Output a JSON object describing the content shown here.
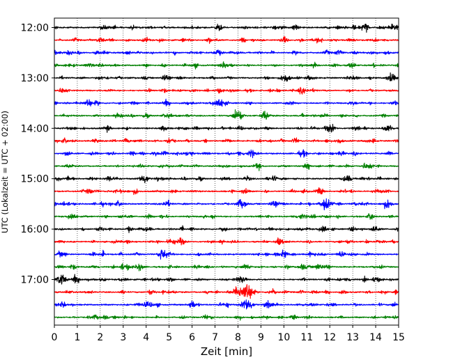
{
  "chart_data": {
    "type": "line",
    "xlabel": "Zeit  [min]",
    "ylabel": "UTC (Lokalzeit = UTC + 02:00)",
    "xlim": [
      0,
      15
    ],
    "x_ticks": [
      0,
      1,
      2,
      3,
      4,
      5,
      6,
      7,
      8,
      9,
      10,
      11,
      12,
      13,
      14,
      15
    ],
    "x_tick_labels": [
      "0",
      "1",
      "2",
      "3",
      "4",
      "5",
      "6",
      "7",
      "8",
      "9",
      "10",
      "11",
      "12",
      "13",
      "14",
      "15"
    ],
    "y_tick_labels": [
      "12:00",
      "13:00",
      "14:00",
      "15:00",
      "16:00",
      "17:00"
    ],
    "row_interval_min": 15,
    "grid": "vertical dotted",
    "series_colors": [
      "#000000",
      "#ff0000",
      "#0000ff",
      "#008000"
    ],
    "traces": [
      {
        "start": "12:00",
        "events": [
          {
            "t": 13.5,
            "a": 1.0
          },
          {
            "t": 2.2,
            "a": 0.7
          },
          {
            "t": 7.2,
            "a": 0.6
          },
          {
            "t": 10.5,
            "a": 0.6
          },
          {
            "t": 14.8,
            "a": 0.6
          }
        ]
      },
      {
        "start": "12:15",
        "events": [
          {
            "t": 2.0,
            "a": 0.6
          },
          {
            "t": 4.0,
            "a": 0.5
          },
          {
            "t": 10.0,
            "a": 0.6
          },
          {
            "t": 11.5,
            "a": 0.5
          }
        ]
      },
      {
        "start": "12:30",
        "events": [
          {
            "t": 7.1,
            "a": 0.6
          },
          {
            "t": 12.4,
            "a": 0.6
          },
          {
            "t": 2.2,
            "a": 0.4
          },
          {
            "t": 3.2,
            "a": 0.4
          }
        ]
      },
      {
        "start": "12:45",
        "events": [
          {
            "t": 7.4,
            "a": 0.8
          },
          {
            "t": 2.0,
            "a": 0.4
          },
          {
            "t": 12.2,
            "a": 0.4
          }
        ]
      },
      {
        "start": "13:00",
        "events": [
          {
            "t": 10.1,
            "a": 0.9
          },
          {
            "t": 4.9,
            "a": 0.6
          },
          {
            "t": 2.0,
            "a": 0.4
          },
          {
            "t": 13.0,
            "a": 0.4
          }
        ]
      },
      {
        "start": "13:15",
        "events": [
          {
            "t": 7.2,
            "a": 0.5
          },
          {
            "t": 10.8,
            "a": 0.5
          },
          {
            "t": 6.0,
            "a": 0.4
          }
        ]
      },
      {
        "start": "13:30",
        "events": [
          {
            "t": 7.2,
            "a": 1.3
          },
          {
            "t": 1.5,
            "a": 0.6
          },
          {
            "t": 4.9,
            "a": 0.5
          },
          {
            "t": 13.0,
            "a": 0.4
          }
        ]
      },
      {
        "start": "13:45",
        "events": [
          {
            "t": 8.0,
            "a": 1.4
          },
          {
            "t": 9.2,
            "a": 0.8
          },
          {
            "t": 4.0,
            "a": 0.4
          }
        ]
      },
      {
        "start": "14:00",
        "events": [
          {
            "t": 14.6,
            "a": 0.7
          },
          {
            "t": 12.0,
            "a": 0.7
          },
          {
            "t": 0.8,
            "a": 0.4
          },
          {
            "t": 2.3,
            "a": 0.4
          },
          {
            "t": 4.8,
            "a": 0.4
          }
        ]
      },
      {
        "start": "14:15",
        "events": [
          {
            "t": 10.5,
            "a": 0.6
          },
          {
            "t": 1.8,
            "a": 0.4
          },
          {
            "t": 5.0,
            "a": 0.4
          },
          {
            "t": 7.5,
            "a": 0.4
          }
        ]
      },
      {
        "start": "14:30",
        "events": [
          {
            "t": 8.6,
            "a": 0.8
          },
          {
            "t": 0.6,
            "a": 0.6
          },
          {
            "t": 5.9,
            "a": 0.6
          },
          {
            "t": 10.8,
            "a": 0.5
          },
          {
            "t": 12.5,
            "a": 0.5
          },
          {
            "t": 14.6,
            "a": 0.5
          }
        ]
      },
      {
        "start": "14:45",
        "events": [
          {
            "t": 4.7,
            "a": 0.4
          },
          {
            "t": 7.5,
            "a": 0.4
          },
          {
            "t": 13.8,
            "a": 0.4
          }
        ]
      },
      {
        "start": "15:00",
        "events": [
          {
            "t": 3.9,
            "a": 1.1
          },
          {
            "t": 2.4,
            "a": 0.5
          },
          {
            "t": 6.3,
            "a": 0.5
          },
          {
            "t": 8.4,
            "a": 0.5
          },
          {
            "t": 12.7,
            "a": 0.7
          }
        ]
      },
      {
        "start": "15:15",
        "events": [
          {
            "t": 1.5,
            "a": 0.4
          },
          {
            "t": 3.5,
            "a": 0.5
          },
          {
            "t": 8.3,
            "a": 0.6
          },
          {
            "t": 11.5,
            "a": 0.5
          },
          {
            "t": 14.0,
            "a": 0.4
          }
        ]
      },
      {
        "start": "15:30",
        "events": [
          {
            "t": 11.8,
            "a": 1.4
          },
          {
            "t": 9.6,
            "a": 0.8
          },
          {
            "t": 14.5,
            "a": 1.1
          },
          {
            "t": 4.9,
            "a": 0.8
          },
          {
            "t": 2.8,
            "a": 0.5
          },
          {
            "t": 8.1,
            "a": 0.5
          }
        ]
      },
      {
        "start": "15:45",
        "events": [
          {
            "t": 4.1,
            "a": 0.4
          },
          {
            "t": 6.5,
            "a": 0.3
          },
          {
            "t": 10.5,
            "a": 0.3
          }
        ]
      },
      {
        "start": "16:00",
        "events": [
          {
            "t": 2.0,
            "a": 0.6
          },
          {
            "t": 4.0,
            "a": 0.5
          },
          {
            "t": 11.7,
            "a": 0.8
          },
          {
            "t": 14.0,
            "a": 0.7
          },
          {
            "t": 13.0,
            "a": 0.5
          },
          {
            "t": 7.4,
            "a": 0.4
          }
        ]
      },
      {
        "start": "16:15",
        "events": [
          {
            "t": 5.5,
            "a": 0.8
          },
          {
            "t": 5.1,
            "a": 0.6
          },
          {
            "t": 9.8,
            "a": 0.4
          },
          {
            "t": 12.8,
            "a": 0.4
          }
        ]
      },
      {
        "start": "16:30",
        "events": [
          {
            "t": 4.7,
            "a": 0.9
          },
          {
            "t": 10.0,
            "a": 0.8
          },
          {
            "t": 12.5,
            "a": 0.4
          },
          {
            "t": 1.7,
            "a": 0.4
          }
        ]
      },
      {
        "start": "16:45",
        "events": [
          {
            "t": 3.7,
            "a": 0.8
          },
          {
            "t": 11.5,
            "a": 0.7
          },
          {
            "t": 11.9,
            "a": 0.6
          },
          {
            "t": 10.8,
            "a": 0.6
          },
          {
            "t": 6.2,
            "a": 0.4
          }
        ]
      },
      {
        "start": "17:00",
        "events": [
          {
            "t": 0.3,
            "a": 1.2
          },
          {
            "t": 1.0,
            "a": 0.8
          },
          {
            "t": 8.1,
            "a": 0.8
          },
          {
            "t": 14.0,
            "a": 0.6
          },
          {
            "t": 12.8,
            "a": 0.5
          },
          {
            "t": 3.1,
            "a": 0.4
          }
        ]
      },
      {
        "start": "17:15",
        "events": [
          {
            "t": 8.4,
            "a": 2.2
          },
          {
            "t": 8.0,
            "a": 1.0
          },
          {
            "t": 9.5,
            "a": 0.7
          },
          {
            "t": 14.3,
            "a": 0.4
          }
        ]
      },
      {
        "start": "17:30",
        "events": [
          {
            "t": 8.4,
            "a": 1.6
          },
          {
            "t": 6.0,
            "a": 0.6
          },
          {
            "t": 4.0,
            "a": 0.5
          },
          {
            "t": 9.3,
            "a": 0.7
          },
          {
            "t": 7.5,
            "a": 0.5
          }
        ]
      },
      {
        "start": "17:45",
        "events": [
          {
            "t": 2.2,
            "a": 0.4
          },
          {
            "t": 9.2,
            "a": 0.3
          }
        ]
      }
    ]
  }
}
